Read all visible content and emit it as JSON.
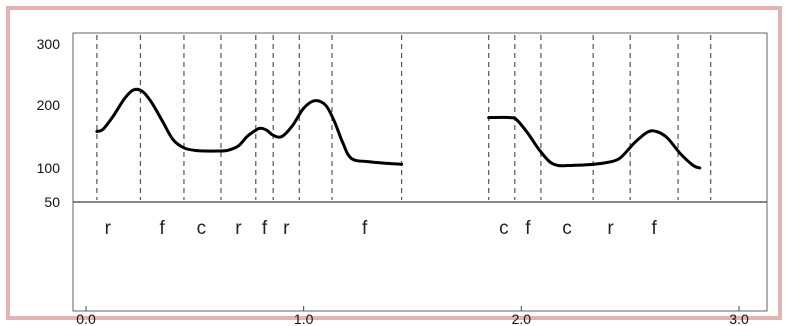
{
  "chart_data": {
    "type": "line",
    "title": "",
    "xlabel": "",
    "ylabel": "",
    "x_ticks": [
      {
        "value": 0.0,
        "label": "0.0"
      },
      {
        "value": 1.0,
        "label": "1.0"
      },
      {
        "value": 2.0,
        "label": "2.0"
      },
      {
        "value": 3.0,
        "label": "3.0"
      }
    ],
    "y_ticks": [
      {
        "value": 300,
        "label": "300"
      },
      {
        "value": 200,
        "label": "200"
      },
      {
        "value": 100,
        "label": "100"
      },
      {
        "value": 50,
        "label": "50"
      }
    ],
    "xlim": [
      0.0,
      3.0
    ],
    "ylim": [
      50,
      300
    ],
    "segment_boundaries": [
      0.05,
      0.25,
      0.45,
      0.62,
      0.78,
      0.86,
      0.98,
      1.13,
      1.45,
      1.85,
      1.97,
      2.09,
      2.33,
      2.5,
      2.72,
      2.87
    ],
    "segment_labels": [
      {
        "label": "r",
        "x": 0.1
      },
      {
        "label": "f",
        "x": 0.35
      },
      {
        "label": "c",
        "x": 0.53
      },
      {
        "label": "r",
        "x": 0.7
      },
      {
        "label": "f",
        "x": 0.82
      },
      {
        "label": "r",
        "x": 0.92
      },
      {
        "label": "f",
        "x": 1.28
      },
      {
        "label": "c",
        "x": 1.92
      },
      {
        "label": "f",
        "x": 2.03
      },
      {
        "label": "c",
        "x": 2.21
      },
      {
        "label": "r",
        "x": 2.41
      },
      {
        "label": "f",
        "x": 2.61
      }
    ],
    "series": [
      {
        "points": [
          [
            0.05,
            158
          ],
          [
            0.08,
            162
          ],
          [
            0.13,
            185
          ],
          [
            0.18,
            212
          ],
          [
            0.22,
            225
          ],
          [
            0.26,
            222
          ],
          [
            0.3,
            205
          ],
          [
            0.35,
            175
          ],
          [
            0.4,
            145
          ],
          [
            0.45,
            132
          ],
          [
            0.5,
            128
          ],
          [
            0.55,
            127
          ],
          [
            0.6,
            127
          ],
          [
            0.65,
            128
          ],
          [
            0.7,
            135
          ],
          [
            0.74,
            150
          ],
          [
            0.78,
            160
          ],
          [
            0.8,
            163
          ],
          [
            0.83,
            160
          ],
          [
            0.86,
            152
          ],
          [
            0.9,
            150
          ],
          [
            0.95,
            168
          ],
          [
            1.0,
            195
          ],
          [
            1.05,
            207
          ],
          [
            1.1,
            200
          ],
          [
            1.14,
            175
          ],
          [
            1.18,
            140
          ],
          [
            1.22,
            115
          ],
          [
            1.3,
            110
          ],
          [
            1.4,
            107
          ],
          [
            1.45,
            106
          ]
        ]
      },
      {
        "points": [
          [
            1.85,
            180
          ],
          [
            1.95,
            180
          ],
          [
            1.98,
            176
          ],
          [
            2.03,
            155
          ],
          [
            2.08,
            130
          ],
          [
            2.13,
            110
          ],
          [
            2.17,
            104
          ],
          [
            2.22,
            104
          ],
          [
            2.3,
            105
          ],
          [
            2.38,
            108
          ],
          [
            2.45,
            115
          ],
          [
            2.52,
            140
          ],
          [
            2.58,
            157
          ],
          [
            2.62,
            158
          ],
          [
            2.67,
            148
          ],
          [
            2.73,
            123
          ],
          [
            2.79,
            104
          ],
          [
            2.82,
            100
          ]
        ]
      }
    ]
  }
}
